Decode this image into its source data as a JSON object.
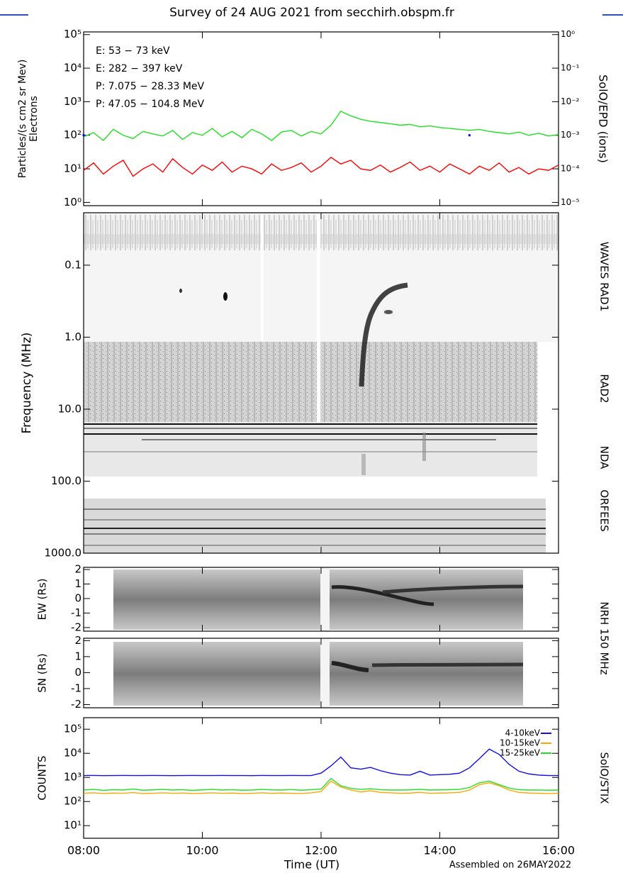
{
  "chart_data": [
    {
      "type": "line",
      "title": "Survey of 24 AUG 2021 from secchirh.obspm.fr",
      "ylabel": "Particles/(s cm2 sr Mev)",
      "ylabel2": "Electrons",
      "y2label": "SolO/EPD (ions)",
      "xlim": [
        8,
        16
      ],
      "log": true,
      "ylim": [
        0.8,
        120000
      ],
      "yticks": [
        {
          "value": 1,
          "label": "10⁰"
        },
        {
          "value": 10,
          "label": "10¹"
        },
        {
          "value": 100,
          "label": "10²"
        },
        {
          "value": 1000,
          "label": "10³"
        },
        {
          "value": 10000,
          "label": "10⁴"
        },
        {
          "value": 100000,
          "label": "10⁵"
        }
      ],
      "y2lim": [
        8e-06,
        1.2
      ],
      "y2ticks": [
        {
          "value": 1e-05,
          "label": "10⁻⁵"
        },
        {
          "value": 0.0001,
          "label": "10⁻⁴"
        },
        {
          "value": 0.001,
          "label": "10⁻³"
        },
        {
          "value": 0.01,
          "label": "10⁻²"
        },
        {
          "value": 0.1,
          "label": "10⁻¹"
        },
        {
          "value": 1,
          "label": "10⁰"
        }
      ],
      "x": [
        8,
        8.167,
        8.333,
        8.5,
        8.667,
        8.833,
        9,
        9.167,
        9.333,
        9.5,
        9.667,
        9.833,
        10,
        10.167,
        10.333,
        10.5,
        10.667,
        10.833,
        11,
        11.167,
        11.333,
        11.5,
        11.667,
        11.833,
        12,
        12.167,
        12.333,
        12.5,
        12.667,
        12.833,
        13,
        13.167,
        13.333,
        13.5,
        13.667,
        13.833,
        14,
        14.167,
        14.333,
        14.5,
        14.667,
        14.833,
        15,
        15.167,
        15.333,
        15.5,
        15.667,
        15.833,
        16
      ],
      "series": [
        {
          "name": "E: 53 − 73 keV",
          "color": "#22e022",
          "values": [
            90,
            120,
            70,
            150,
            100,
            80,
            130,
            110,
            95,
            140,
            75,
            120,
            100,
            160,
            90,
            130,
            85,
            150,
            110,
            70,
            125,
            140,
            95,
            130,
            110,
            200,
            520,
            380,
            300,
            260,
            240,
            220,
            200,
            210,
            180,
            190,
            170,
            160,
            150,
            140,
            150,
            130,
            120,
            110,
            125,
            100,
            115,
            95,
            105
          ]
        },
        {
          "name": "E: 282 − 397 keV",
          "color": "#ff0000",
          "values": [
            9,
            15,
            7,
            12,
            18,
            6,
            10,
            14,
            8,
            20,
            11,
            7,
            13,
            9,
            16,
            8,
            12,
            10,
            7,
            14,
            9,
            11,
            15,
            8,
            12,
            22,
            14,
            18,
            10,
            9,
            13,
            8,
            11,
            16,
            9,
            12,
            8,
            14,
            10,
            7,
            12,
            9,
            15,
            8,
            11,
            7,
            10,
            9,
            13
          ]
        },
        {
          "name": "P: 7.075 − 28.33 MeV",
          "color": "#000000",
          "axis": "y2",
          "values": [
            null,
            null,
            null,
            null,
            null,
            null,
            null,
            null,
            null,
            null,
            null,
            null,
            null,
            null,
            null,
            null,
            null,
            null,
            null,
            null,
            null,
            null,
            null,
            null,
            null,
            null,
            null,
            null,
            null,
            null,
            null,
            null,
            null,
            null,
            null,
            null,
            null,
            null,
            null,
            null,
            null,
            null,
            null,
            null,
            null,
            null,
            null,
            null,
            null
          ]
        },
        {
          "name": "P: 47.05 − 104.8 MeV",
          "color": "#0000ff",
          "axis": "y2",
          "values": [
            0.001,
            null,
            null,
            null,
            null,
            null,
            null,
            null,
            null,
            null,
            null,
            null,
            null,
            null,
            null,
            null,
            null,
            null,
            null,
            null,
            null,
            null,
            null,
            null,
            null,
            null,
            null,
            null,
            null,
            null,
            null,
            null,
            null,
            null,
            null,
            null,
            null,
            null,
            null,
            0.001,
            null,
            null,
            null,
            null,
            null,
            null,
            null,
            null,
            null
          ]
        }
      ]
    },
    {
      "type": "spectrogram",
      "ylabel": "Frequency (MHz)",
      "xlim": [
        8,
        16
      ],
      "log": true,
      "inverted": true,
      "ylim": [
        0.0187,
        1000
      ],
      "yticks": [
        0.1,
        {
          "value": 1,
          "label": "1.0"
        },
        {
          "value": 10,
          "label": "10.0"
        },
        {
          "value": 100,
          "label": "100.0"
        },
        {
          "value": 1000,
          "label": "1000.0"
        }
      ],
      "panel_labels": [
        "WAVES RAD1",
        "RAD2",
        "NDA",
        "ORFEES"
      ]
    },
    {
      "type": "image",
      "ylabel": "EW (Rs)",
      "xlim": [
        8,
        16
      ],
      "ylim": [
        -2.25,
        2.15
      ],
      "yticks": [
        2,
        1,
        0,
        -1,
        -2
      ],
      "side_label": "NRH 150 MHz"
    },
    {
      "type": "image",
      "ylabel": "SN (Rs)",
      "xlim": [
        8,
        16
      ],
      "ylim": [
        -2.2,
        2.15
      ],
      "yticks": [
        2,
        1,
        0,
        -1,
        -2
      ]
    },
    {
      "type": "line",
      "ylabel": "COUNTS",
      "side_label": "SolO/STIX",
      "xlabel": "Time (UT)",
      "footnote": "Assembled on 26MAY2022",
      "xlim": [
        8,
        16
      ],
      "log": true,
      "ylim": [
        3,
        300000
      ],
      "yticks": [
        {
          "value": 10,
          "label": "10¹"
        },
        {
          "value": 100,
          "label": "10²"
        },
        {
          "value": 1000,
          "label": "10³"
        },
        {
          "value": 10000,
          "label": "10⁴"
        },
        {
          "value": 100000,
          "label": "10⁵"
        }
      ],
      "xticks": [
        {
          "value": 8,
          "label": "08:00"
        },
        {
          "value": 10,
          "label": "10:00"
        },
        {
          "value": 12,
          "label": "12:00"
        },
        {
          "value": 14,
          "label": "14:00"
        },
        {
          "value": 16,
          "label": "16:00"
        }
      ],
      "x": [
        8,
        8.167,
        8.333,
        8.5,
        8.667,
        8.833,
        9,
        9.167,
        9.333,
        9.5,
        9.667,
        9.833,
        10,
        10.167,
        10.333,
        10.5,
        10.667,
        10.833,
        11,
        11.167,
        11.333,
        11.5,
        11.667,
        11.833,
        12,
        12.167,
        12.333,
        12.5,
        12.667,
        12.833,
        13,
        13.167,
        13.333,
        13.5,
        13.667,
        13.833,
        14,
        14.167,
        14.333,
        14.5,
        14.667,
        14.833,
        15,
        15.167,
        15.333,
        15.5,
        15.667,
        15.833,
        16
      ],
      "series": [
        {
          "name": "4-10keV",
          "color": "#1010e0",
          "values": [
            1200,
            1210,
            1190,
            1200,
            1205,
            1195,
            1200,
            1210,
            1200,
            1190,
            1200,
            1205,
            1200,
            1195,
            1210,
            1200,
            1200,
            1190,
            1205,
            1200,
            1200,
            1210,
            1195,
            1200,
            1500,
            3000,
            7000,
            2500,
            2200,
            2600,
            1900,
            1500,
            1300,
            1250,
            1800,
            1250,
            1300,
            1350,
            1500,
            2500,
            6000,
            15000,
            9000,
            3500,
            1800,
            1400,
            1250,
            1200,
            1200
          ]
        },
        {
          "name": "10-15keV",
          "color": "#ffa500",
          "values": [
            220,
            230,
            215,
            225,
            220,
            235,
            215,
            220,
            230,
            220,
            225,
            215,
            220,
            230,
            220,
            225,
            215,
            220,
            230,
            220,
            225,
            220,
            215,
            230,
            260,
            700,
            400,
            300,
            250,
            280,
            240,
            230,
            220,
            225,
            240,
            220,
            225,
            230,
            240,
            300,
            500,
            600,
            450,
            300,
            240,
            225,
            220,
            215,
            220
          ]
        },
        {
          "name": "15-25keV",
          "color": "#22e022",
          "values": [
            300,
            320,
            290,
            310,
            300,
            330,
            295,
            305,
            320,
            300,
            310,
            290,
            305,
            320,
            300,
            310,
            295,
            300,
            320,
            305,
            300,
            315,
            295,
            310,
            330,
            900,
            450,
            350,
            320,
            340,
            310,
            300,
            300,
            305,
            320,
            300,
            305,
            310,
            320,
            380,
            600,
            700,
            500,
            360,
            310,
            300,
            300,
            295,
            300
          ]
        }
      ]
    }
  ]
}
